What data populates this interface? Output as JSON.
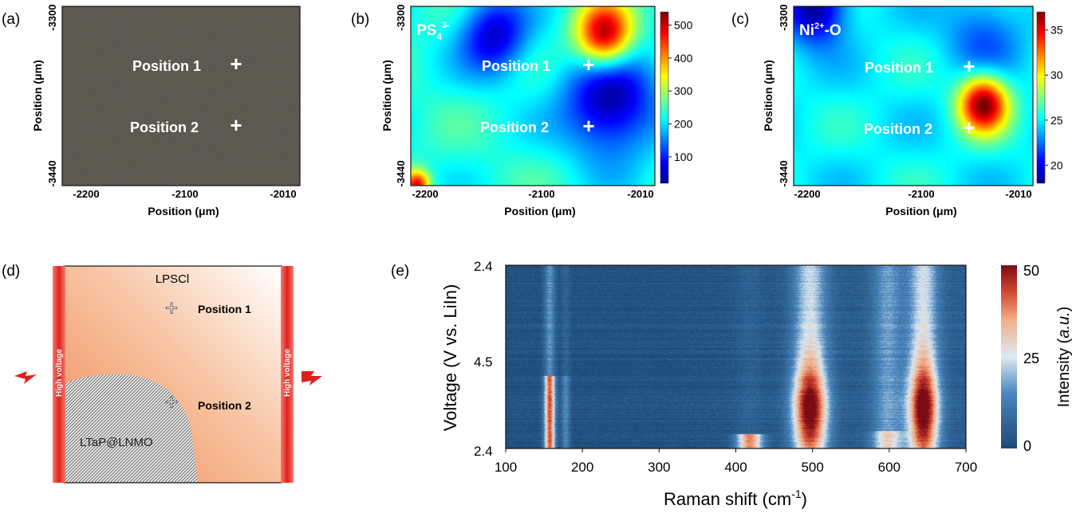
{
  "panels": {
    "a": {
      "tag": "(a)",
      "xlabel": "Position (μm)",
      "ylabel": "Position (μm)",
      "xticks": [
        "-2200",
        "-2100",
        "-2010"
      ],
      "yticks": [
        "-3300",
        "-3440"
      ],
      "markers": [
        "Position 1",
        "Position 2"
      ]
    },
    "b": {
      "tag": "(b)",
      "label_main": "PS",
      "label_sub": "4",
      "label_sup": "3-",
      "xlabel": "Position (μm)",
      "ylabel": "Position (μm)",
      "xticks": [
        "-2200",
        "-2100",
        "-2010"
      ],
      "yticks": [
        "-3300",
        "-3440"
      ],
      "markers": [
        "Position 1",
        "Position 2"
      ],
      "colorbar_ticks": [
        "100",
        "200",
        "300",
        "400",
        "500"
      ]
    },
    "c": {
      "tag": "(c)",
      "label_main": "Ni",
      "label_sup": "2+",
      "label_tail": "-O",
      "xlabel": "Position (μm)",
      "ylabel": "Position (μm)",
      "xticks": [
        "-2200",
        "-2100",
        "-2010"
      ],
      "yticks": [
        "-3300",
        "-3440"
      ],
      "markers": [
        "Position 1",
        "Position 2"
      ],
      "colorbar_ticks": [
        "20",
        "25",
        "30",
        "35"
      ]
    },
    "d": {
      "tag": "(d)",
      "top_label": "LPSCl",
      "bottom_label": "LTaP@LNMO",
      "electrode_label": "High voltage",
      "markers": [
        "Position 1",
        "Position 2"
      ]
    },
    "e": {
      "tag": "(e)",
      "xlabel_main": "Raman shift (cm",
      "xlabel_sup": "-1",
      "xlabel_end": ")",
      "ylabel": "Voltage (V vs. LiIn)",
      "colorbar_label_pre": "Intensity (",
      "colorbar_label_it": "a.u.",
      "colorbar_label_post": ")",
      "colorbar_ticks": [
        "0",
        "25",
        "50"
      ]
    }
  },
  "chart_data": [
    {
      "type": "heatmap",
      "panel": "b",
      "title": "PS4 3-",
      "xlabel": "Position (μm)",
      "ylabel": "Position (μm)",
      "xlim": [
        -2220,
        -2000
      ],
      "ylim": [
        -3440,
        -3300
      ],
      "colorbar_range": [
        20,
        540
      ],
      "hotspots": [
        {
          "x": -2045,
          "y": -3322,
          "value": 540,
          "sigma": 18
        },
        {
          "x": -2040,
          "y": -3375,
          "value": 30,
          "sigma": 30
        },
        {
          "x": -2145,
          "y": -3322,
          "value": 60,
          "sigma": 22
        },
        {
          "x": -2215,
          "y": -3440,
          "value": 480,
          "sigma": 8
        }
      ],
      "markers": [
        {
          "label": "Position 1",
          "x": -2045,
          "y": -3322
        },
        {
          "label": "Position 2",
          "x": -2045,
          "y": -3375
        }
      ],
      "colormap": "jet"
    },
    {
      "type": "heatmap",
      "panel": "c",
      "title": "Ni2+-O",
      "xlabel": "Position (μm)",
      "ylabel": "Position (μm)",
      "xlim": [
        -2220,
        -2000
      ],
      "ylim": [
        -3440,
        -3300
      ],
      "colorbar_range": [
        18,
        37
      ],
      "hotspots": [
        {
          "x": -2045,
          "y": -3376,
          "value": 37,
          "sigma": 16
        },
        {
          "x": -2045,
          "y": -3322,
          "value": 22,
          "sigma": 25
        },
        {
          "x": -2200,
          "y": -3300,
          "value": 18,
          "sigma": 20
        }
      ],
      "markers": [
        {
          "label": "Position 1",
          "x": -2045,
          "y": -3322
        },
        {
          "label": "Position 2",
          "x": -2045,
          "y": -3376
        }
      ],
      "colormap": "jet"
    },
    {
      "type": "heatmap",
      "panel": "e",
      "xlabel": "Raman shift (cm-1)",
      "ylabel": "Voltage (V vs. LiIn)",
      "xlim": [
        100,
        700
      ],
      "xticks": [
        100,
        200,
        300,
        400,
        500,
        600,
        700
      ],
      "yticks": [
        "2.4",
        "4.5",
        "2.4"
      ],
      "colorbar_range": [
        0,
        50
      ],
      "colorbar_ticks": [
        0,
        25,
        50
      ],
      "bands": [
        {
          "shift": 157,
          "peak_intensity": 40,
          "width": 5
        },
        {
          "shift": 178,
          "peak_intensity": 12,
          "width": 4
        },
        {
          "shift": 418,
          "peak_intensity": 35,
          "width": 12
        },
        {
          "shift": 497,
          "peak_intensity": 50,
          "width": 16
        },
        {
          "shift": 598,
          "peak_intensity": 28,
          "width": 14
        },
        {
          "shift": 645,
          "peak_intensity": 50,
          "width": 14
        }
      ],
      "colormap": "RdBu_r"
    }
  ]
}
